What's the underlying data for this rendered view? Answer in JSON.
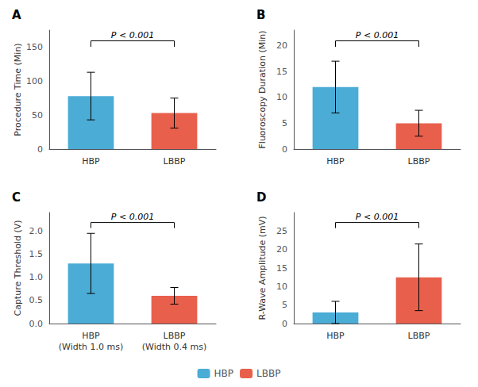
{
  "chart_data": [
    {
      "type": "bar",
      "title": "A",
      "ylabel": "Procedure Time (Min)",
      "categories": [
        "HBP",
        "LBBP"
      ],
      "series": [
        {
          "name": "HBP",
          "color": "#4bacd6",
          "values": [
            78,
            null
          ],
          "errors": [
            35,
            null
          ]
        },
        {
          "name": "LBBP",
          "color": "#e8604c",
          "values": [
            null,
            53
          ],
          "errors": [
            null,
            22
          ]
        }
      ],
      "ylim": [
        0,
        175
      ],
      "yticks": [
        0,
        50,
        100,
        150
      ],
      "annotations": [
        "P < 0.001"
      ],
      "grid": false,
      "legend": "bottom"
    },
    {
      "type": "bar",
      "title": "B",
      "ylabel": "Fluoroscopy Duration (Min)",
      "categories": [
        "HBP",
        "LBBP"
      ],
      "series": [
        {
          "name": "HBP",
          "color": "#4bacd6",
          "values": [
            12,
            null
          ],
          "errors": [
            5,
            null
          ]
        },
        {
          "name": "LBBP",
          "color": "#e8604c",
          "values": [
            null,
            5
          ],
          "errors": [
            null,
            2.5
          ]
        }
      ],
      "ylim": [
        0,
        23
      ],
      "yticks": [
        0,
        5,
        10,
        15,
        20
      ],
      "annotations": [
        "P < 0.001"
      ],
      "grid": false,
      "legend": "bottom"
    },
    {
      "type": "bar",
      "title": "C",
      "ylabel": "Capture Threshold (V)",
      "categories": [
        "HBP\n(Width 1.0 ms)",
        "LBBP\n(Width 0.4 ms)"
      ],
      "series": [
        {
          "name": "HBP",
          "color": "#4bacd6",
          "values": [
            1.3,
            null
          ],
          "errors": [
            0.65,
            null
          ]
        },
        {
          "name": "LBBP",
          "color": "#e8604c",
          "values": [
            null,
            0.6
          ],
          "errors": [
            null,
            0.18
          ]
        }
      ],
      "ylim": [
        0,
        2.4
      ],
      "yticks": [
        {
          "value": 0,
          "label": "0.0"
        },
        0.5,
        {
          "value": 1,
          "label": "1.0"
        },
        1.5,
        {
          "value": 2,
          "label": "2.0"
        }
      ],
      "annotations": [
        "P < 0.001"
      ],
      "grid": false,
      "legend": "bottom"
    },
    {
      "type": "bar",
      "title": "D",
      "ylabel": "R-Wave Amplitude (mV)",
      "categories": [
        "HBP",
        "LBBP"
      ],
      "series": [
        {
          "name": "HBP",
          "color": "#4bacd6",
          "values": [
            3,
            null
          ],
          "errors": [
            3,
            null
          ]
        },
        {
          "name": "LBBP",
          "color": "#e8604c",
          "values": [
            null,
            12.5
          ],
          "errors": [
            null,
            9
          ]
        }
      ],
      "ylim": [
        0,
        30
      ],
      "yticks": [
        0,
        5,
        10,
        15,
        20,
        25
      ],
      "annotations": [
        "P < 0.001"
      ],
      "grid": false,
      "legend": "bottom"
    }
  ]
}
